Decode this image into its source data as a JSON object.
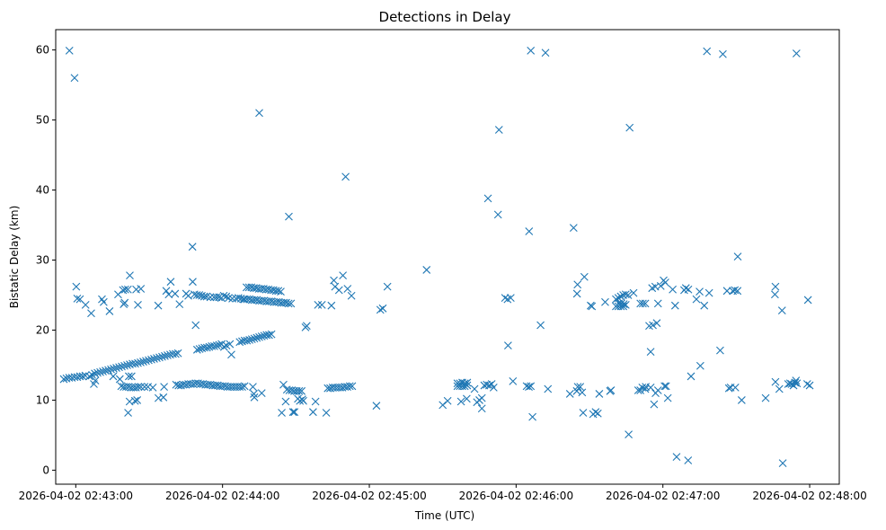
{
  "chart_data": {
    "type": "scatter",
    "title": "Detections in Delay",
    "xlabel": "Time (UTC)",
    "ylabel": "Bistatic Delay (km)",
    "marker": "x",
    "color": "#1f77b4",
    "x_unit": "seconds after 2026-04-02 02:43:00",
    "xlim": [
      -8.2,
      312.1
    ],
    "ylim": [
      -2.0,
      62.9
    ],
    "x_ticks": [
      {
        "value": 0,
        "label": "2026-04-02 02:43:00"
      },
      {
        "value": 60,
        "label": "2026-04-02 02:44:00"
      },
      {
        "value": 120,
        "label": "2026-04-02 02:45:00"
      },
      {
        "value": 180,
        "label": "2026-04-02 02:46:00"
      },
      {
        "value": 240,
        "label": "2026-04-02 02:47:00"
      },
      {
        "value": 300,
        "label": "2026-04-02 02:48:00"
      }
    ],
    "y_ticks": [
      {
        "value": 0,
        "label": "0"
      },
      {
        "value": 10,
        "label": "10"
      },
      {
        "value": 20,
        "label": "20"
      },
      {
        "value": 30,
        "label": "30"
      },
      {
        "value": 40,
        "label": "40"
      },
      {
        "value": 50,
        "label": "50"
      },
      {
        "value": 60,
        "label": "60"
      }
    ],
    "points": [
      [
        -4.9,
        13.0
      ],
      [
        -3.8,
        13.1
      ],
      [
        -2.7,
        13.2
      ],
      [
        -1.6,
        13.2
      ],
      [
        -0.5,
        13.3
      ],
      [
        0.6,
        13.3
      ],
      [
        1.7,
        13.4
      ],
      [
        2.8,
        13.4
      ],
      [
        3.9,
        13.5
      ],
      [
        -2.6,
        59.9
      ],
      [
        -0.5,
        56.0
      ],
      [
        0.2,
        26.2
      ],
      [
        0.6,
        24.5
      ],
      [
        1.7,
        24.4
      ],
      [
        4.0,
        23.6
      ],
      [
        6.3,
        22.4
      ],
      [
        7.4,
        12.3
      ],
      [
        8.0,
        12.8
      ],
      [
        5.6,
        13.4
      ],
      [
        6.7,
        13.6
      ],
      [
        7.8,
        13.8
      ],
      [
        8.9,
        13.9
      ],
      [
        10.0,
        14.0
      ],
      [
        11.1,
        14.1
      ],
      [
        12.2,
        14.2
      ],
      [
        13.3,
        14.3
      ],
      [
        14.4,
        14.4
      ],
      [
        15.5,
        14.5
      ],
      [
        16.6,
        14.6
      ],
      [
        17.7,
        14.7
      ],
      [
        18.8,
        14.8
      ],
      [
        19.9,
        14.9
      ],
      [
        21.0,
        15.0
      ],
      [
        22.1,
        15.1
      ],
      [
        23.2,
        15.2
      ],
      [
        24.3,
        15.2
      ],
      [
        25.4,
        15.3
      ],
      [
        26.5,
        15.4
      ],
      [
        27.6,
        15.5
      ],
      [
        28.7,
        15.6
      ],
      [
        29.8,
        15.7
      ],
      [
        30.9,
        15.8
      ],
      [
        32.0,
        15.9
      ],
      [
        33.1,
        16.0
      ],
      [
        34.2,
        16.1
      ],
      [
        35.3,
        16.2
      ],
      [
        36.4,
        16.3
      ],
      [
        37.5,
        16.4
      ],
      [
        38.6,
        16.5
      ],
      [
        39.7,
        16.6
      ],
      [
        40.8,
        16.6
      ],
      [
        41.8,
        16.7
      ],
      [
        10.7,
        24.4
      ],
      [
        11.4,
        24.0
      ],
      [
        13.8,
        22.7
      ],
      [
        15.3,
        13.4
      ],
      [
        17.3,
        25.1
      ],
      [
        18.0,
        13.0
      ],
      [
        19.3,
        25.7
      ],
      [
        20.2,
        25.8
      ],
      [
        21.3,
        25.8
      ],
      [
        19.6,
        23.7
      ],
      [
        20.0,
        23.9
      ],
      [
        22.1,
        27.8
      ],
      [
        21.7,
        13.4
      ],
      [
        22.8,
        13.4
      ],
      [
        21.4,
        8.2
      ],
      [
        22.0,
        9.8
      ],
      [
        24.2,
        9.9
      ],
      [
        25.1,
        10.0
      ],
      [
        24.7,
        25.8
      ],
      [
        26.6,
        25.9
      ],
      [
        25.4,
        23.6
      ],
      [
        18.6,
        12.0
      ],
      [
        19.6,
        11.9
      ],
      [
        20.6,
        11.9
      ],
      [
        21.6,
        11.9
      ],
      [
        22.6,
        11.8
      ],
      [
        23.6,
        11.8
      ],
      [
        24.6,
        11.8
      ],
      [
        25.6,
        11.9
      ],
      [
        26.6,
        11.9
      ],
      [
        28.1,
        11.9
      ],
      [
        29.5,
        11.9
      ],
      [
        31.5,
        11.8
      ],
      [
        33.8,
        10.3
      ],
      [
        35.8,
        10.4
      ],
      [
        36.1,
        11.9
      ],
      [
        33.7,
        23.5
      ],
      [
        37.0,
        25.6
      ],
      [
        38.0,
        25.1
      ],
      [
        38.8,
        26.9
      ],
      [
        40.6,
        25.2
      ],
      [
        41.0,
        12.2
      ],
      [
        42.0,
        12.1
      ],
      [
        43.0,
        12.1
      ],
      [
        44.0,
        12.2
      ],
      [
        45.0,
        12.2
      ],
      [
        46.0,
        12.3
      ],
      [
        47.0,
        12.3
      ],
      [
        48.0,
        12.3
      ],
      [
        49.0,
        12.4
      ],
      [
        50.0,
        12.4
      ],
      [
        51.0,
        12.3
      ],
      [
        52.0,
        12.3
      ],
      [
        53.0,
        12.2
      ],
      [
        54.0,
        12.2
      ],
      [
        55.0,
        12.2
      ],
      [
        56.0,
        12.1
      ],
      [
        57.0,
        12.1
      ],
      [
        58.0,
        12.1
      ],
      [
        59.0,
        12.0
      ],
      [
        60.0,
        12.0
      ],
      [
        61.0,
        12.0
      ],
      [
        62.0,
        11.9
      ],
      [
        63.0,
        11.9
      ],
      [
        64.0,
        11.9
      ],
      [
        65.0,
        11.9
      ],
      [
        66.0,
        11.9
      ],
      [
        67.0,
        11.9
      ],
      [
        68.0,
        11.9
      ],
      [
        69.0,
        12.0
      ],
      [
        42.4,
        23.7
      ],
      [
        45.1,
        25.2
      ],
      [
        47.7,
        31.9
      ],
      [
        46.0,
        24.9
      ],
      [
        47.8,
        26.9
      ],
      [
        48.5,
        25.1
      ],
      [
        49.5,
        25.0
      ],
      [
        50.5,
        25.0
      ],
      [
        51.5,
        24.9
      ],
      [
        52.5,
        24.8
      ],
      [
        53.5,
        24.8
      ],
      [
        55.0,
        24.7
      ],
      [
        56.5,
        24.7
      ],
      [
        57.5,
        24.7
      ],
      [
        58.5,
        24.7
      ],
      [
        59.5,
        24.6
      ],
      [
        60.5,
        24.9
      ],
      [
        61.5,
        24.8
      ],
      [
        62.5,
        24.6
      ],
      [
        64.0,
        24.5
      ],
      [
        65.5,
        24.5
      ],
      [
        66.5,
        24.6
      ],
      [
        67.5,
        24.5
      ],
      [
        68.5,
        24.4
      ],
      [
        49.0,
        20.7
      ],
      [
        49.6,
        17.2
      ],
      [
        50.6,
        17.3
      ],
      [
        51.6,
        17.4
      ],
      [
        52.6,
        17.5
      ],
      [
        53.6,
        17.5
      ],
      [
        54.6,
        17.6
      ],
      [
        55.6,
        17.7
      ],
      [
        56.6,
        17.7
      ],
      [
        57.6,
        17.8
      ],
      [
        58.6,
        17.9
      ],
      [
        59.6,
        18.0
      ],
      [
        60.6,
        17.6
      ],
      [
        61.6,
        17.8
      ],
      [
        63.0,
        18.0
      ],
      [
        63.6,
        16.5
      ],
      [
        67.0,
        18.3
      ],
      [
        68.0,
        18.4
      ],
      [
        69.0,
        18.5
      ],
      [
        70.0,
        18.5
      ],
      [
        71.0,
        18.6
      ],
      [
        72.0,
        18.7
      ],
      [
        73.0,
        18.8
      ],
      [
        74.0,
        18.9
      ],
      [
        75.0,
        19.0
      ],
      [
        76.0,
        19.1
      ],
      [
        77.0,
        19.2
      ],
      [
        78.0,
        19.3
      ],
      [
        79.0,
        19.3
      ],
      [
        80.0,
        19.4
      ],
      [
        69.8,
        26.1
      ],
      [
        70.8,
        26.1
      ],
      [
        71.8,
        26.1
      ],
      [
        72.8,
        26.0
      ],
      [
        73.8,
        26.0
      ],
      [
        74.8,
        25.9
      ],
      [
        75.8,
        25.9
      ],
      [
        76.8,
        25.9
      ],
      [
        77.8,
        25.8
      ],
      [
        78.8,
        25.8
      ],
      [
        79.8,
        25.7
      ],
      [
        80.8,
        25.7
      ],
      [
        81.8,
        25.6
      ],
      [
        82.8,
        25.6
      ],
      [
        83.8,
        25.5
      ],
      [
        69.0,
        24.4
      ],
      [
        70.0,
        24.4
      ],
      [
        71.0,
        24.4
      ],
      [
        72.0,
        24.3
      ],
      [
        73.0,
        24.3
      ],
      [
        74.0,
        24.3
      ],
      [
        75.0,
        24.2
      ],
      [
        76.0,
        24.2
      ],
      [
        77.0,
        24.2
      ],
      [
        78.0,
        24.1
      ],
      [
        79.0,
        24.1
      ],
      [
        80.0,
        24.1
      ],
      [
        81.0,
        24.0
      ],
      [
        82.0,
        24.0
      ],
      [
        83.0,
        24.0
      ],
      [
        84.0,
        23.9
      ],
      [
        85.0,
        23.9
      ],
      [
        86.0,
        23.9
      ],
      [
        87.0,
        23.8
      ],
      [
        88.0,
        23.8
      ],
      [
        72.4,
        11.9
      ],
      [
        72.8,
        10.9
      ],
      [
        73.0,
        10.4
      ],
      [
        75.0,
        51.0
      ],
      [
        76.0,
        11.0
      ],
      [
        84.9,
        12.2
      ],
      [
        85.8,
        9.8
      ],
      [
        86.3,
        11.5
      ],
      [
        87.3,
        11.4
      ],
      [
        88.3,
        11.4
      ],
      [
        89.3,
        11.3
      ],
      [
        90.3,
        11.3
      ],
      [
        91.3,
        11.3
      ],
      [
        92.3,
        11.3
      ],
      [
        84.2,
        8.2
      ],
      [
        88.8,
        8.3
      ],
      [
        89.4,
        8.3
      ],
      [
        90.8,
        10.2
      ],
      [
        91.6,
        9.9
      ],
      [
        92.6,
        10.1
      ],
      [
        93.0,
        9.9
      ],
      [
        87.1,
        36.2
      ],
      [
        93.9,
        20.4
      ],
      [
        94.4,
        20.6
      ],
      [
        97.0,
        8.3
      ],
      [
        98.0,
        9.8
      ],
      [
        99.0,
        23.6
      ],
      [
        100.6,
        23.6
      ],
      [
        102.4,
        8.2
      ],
      [
        104.5,
        23.5
      ],
      [
        103.0,
        11.7
      ],
      [
        104.0,
        11.7
      ],
      [
        105.0,
        11.8
      ],
      [
        106.0,
        11.8
      ],
      [
        107.0,
        11.8
      ],
      [
        108.0,
        11.8
      ],
      [
        109.0,
        11.8
      ],
      [
        110.0,
        11.9
      ],
      [
        111.0,
        11.9
      ],
      [
        112.0,
        12.0
      ],
      [
        113.0,
        12.0
      ],
      [
        105.5,
        27.1
      ],
      [
        106.0,
        26.2
      ],
      [
        107.6,
        25.7
      ],
      [
        109.2,
        27.8
      ],
      [
        110.3,
        41.9
      ],
      [
        111.1,
        25.9
      ],
      [
        112.7,
        24.9
      ],
      [
        122.9,
        9.2
      ],
      [
        124.5,
        22.9
      ],
      [
        125.5,
        23.1
      ],
      [
        127.4,
        26.2
      ],
      [
        143.4,
        28.6
      ],
      [
        150.0,
        9.3
      ],
      [
        152.0,
        9.9
      ],
      [
        156.0,
        12.4
      ],
      [
        157.0,
        12.4
      ],
      [
        158.0,
        12.5
      ],
      [
        159.0,
        12.4
      ],
      [
        160.0,
        12.5
      ],
      [
        156.0,
        12.0
      ],
      [
        157.0,
        12.0
      ],
      [
        158.0,
        12.0
      ],
      [
        159.0,
        12.0
      ],
      [
        160.0,
        12.1
      ],
      [
        157.5,
        9.8
      ],
      [
        159.8,
        10.2
      ],
      [
        164.0,
        9.7
      ],
      [
        165.0,
        10.0
      ],
      [
        166.0,
        10.3
      ],
      [
        167.0,
        12.1
      ],
      [
        168.0,
        12.2
      ],
      [
        169.0,
        12.1
      ],
      [
        170.0,
        12.3
      ],
      [
        166.0,
        8.8
      ],
      [
        163.0,
        11.6
      ],
      [
        170.8,
        11.8
      ],
      [
        168.5,
        38.8
      ],
      [
        172.6,
        36.5
      ],
      [
        173.0,
        48.6
      ],
      [
        175.5,
        24.6
      ],
      [
        176.5,
        24.4
      ],
      [
        176.7,
        17.8
      ],
      [
        177.8,
        24.6
      ],
      [
        178.7,
        12.7
      ],
      [
        184.3,
        12.0
      ],
      [
        185.2,
        11.9
      ],
      [
        186.0,
        12.0
      ],
      [
        185.3,
        34.1
      ],
      [
        186.7,
        7.6
      ],
      [
        186.0,
        59.9
      ],
      [
        190.0,
        20.7
      ],
      [
        192.0,
        59.6
      ],
      [
        193.0,
        11.6
      ],
      [
        202.0,
        10.9
      ],
      [
        204.8,
        11.3
      ],
      [
        205.2,
        11.9
      ],
      [
        206.2,
        11.9
      ],
      [
        207.0,
        11.1
      ],
      [
        207.4,
        8.2
      ],
      [
        203.5,
        34.6
      ],
      [
        204.9,
        25.2
      ],
      [
        205.1,
        26.5
      ],
      [
        207.9,
        27.6
      ],
      [
        210.5,
        23.5
      ],
      [
        211.0,
        23.4
      ],
      [
        211.5,
        8.0
      ],
      [
        212.5,
        8.3
      ],
      [
        213.4,
        8.1
      ],
      [
        214.0,
        10.9
      ],
      [
        216.4,
        24.0
      ],
      [
        218.4,
        11.3
      ],
      [
        218.8,
        11.4
      ],
      [
        220.8,
        24.4
      ],
      [
        221.8,
        24.6
      ],
      [
        222.8,
        24.8
      ],
      [
        223.8,
        25.0
      ],
      [
        224.8,
        25.1
      ],
      [
        225.8,
        25.0
      ],
      [
        220.8,
        23.4
      ],
      [
        221.8,
        23.4
      ],
      [
        222.8,
        23.4
      ],
      [
        223.8,
        23.4
      ],
      [
        224.8,
        23.6
      ],
      [
        228.0,
        25.3
      ],
      [
        222.0,
        23.8
      ],
      [
        223.0,
        23.8
      ],
      [
        224.0,
        23.7
      ],
      [
        226.4,
        48.9
      ],
      [
        226.0,
        5.1
      ],
      [
        229.9,
        11.4
      ],
      [
        230.8,
        11.4
      ],
      [
        231.6,
        11.8
      ],
      [
        232.8,
        11.6
      ],
      [
        233.0,
        11.9
      ],
      [
        235.0,
        11.8
      ],
      [
        237.0,
        11.0
      ],
      [
        238.0,
        11.4
      ],
      [
        230.8,
        23.8
      ],
      [
        231.8,
        23.8
      ],
      [
        232.8,
        23.8
      ],
      [
        234.4,
        20.6
      ],
      [
        235.9,
        20.7
      ],
      [
        237.5,
        21.0
      ],
      [
        238.0,
        23.8
      ],
      [
        235.6,
        26.0
      ],
      [
        236.9,
        26.2
      ],
      [
        235.0,
        16.9
      ],
      [
        236.4,
        9.4
      ],
      [
        239.1,
        26.3
      ],
      [
        240.3,
        27.1
      ],
      [
        241.0,
        26.8
      ],
      [
        240.7,
        12.0
      ],
      [
        241.3,
        12.0
      ],
      [
        242.0,
        10.3
      ],
      [
        244.0,
        25.8
      ],
      [
        245.0,
        23.5
      ],
      [
        245.6,
        1.9
      ],
      [
        248.7,
        25.7
      ],
      [
        249.4,
        26.0
      ],
      [
        250.3,
        1.4
      ],
      [
        250.4,
        25.8
      ],
      [
        251.5,
        13.4
      ],
      [
        253.7,
        24.4
      ],
      [
        255.0,
        25.5
      ],
      [
        255.3,
        14.9
      ],
      [
        256.9,
        23.5
      ],
      [
        258.0,
        59.8
      ],
      [
        258.9,
        25.3
      ],
      [
        263.4,
        17.1
      ],
      [
        264.5,
        59.4
      ],
      [
        266.2,
        25.6
      ],
      [
        267.0,
        11.7
      ],
      [
        267.7,
        11.8
      ],
      [
        268.6,
        25.6
      ],
      [
        269.4,
        25.7
      ],
      [
        269.6,
        11.8
      ],
      [
        270.5,
        25.6
      ],
      [
        270.6,
        30.5
      ],
      [
        272.2,
        10.0
      ],
      [
        282.0,
        10.3
      ],
      [
        285.8,
        25.1
      ],
      [
        286.0,
        26.2
      ],
      [
        286.0,
        12.6
      ],
      [
        287.6,
        11.6
      ],
      [
        288.7,
        22.8
      ],
      [
        289.0,
        1.0
      ],
      [
        291.2,
        12.3
      ],
      [
        292.0,
        12.4
      ],
      [
        292.6,
        12.3
      ],
      [
        293.4,
        12.1
      ],
      [
        294.0,
        12.5
      ],
      [
        294.4,
        12.8
      ],
      [
        294.8,
        12.4
      ],
      [
        294.6,
        59.5
      ],
      [
        299.0,
        12.3
      ],
      [
        299.3,
        24.3
      ],
      [
        300.0,
        12.1
      ]
    ]
  }
}
